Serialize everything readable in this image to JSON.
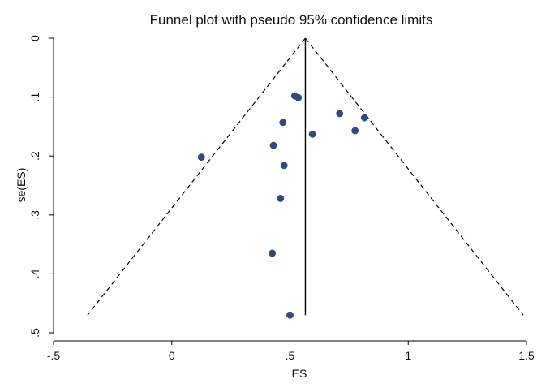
{
  "chart_data": {
    "type": "scatter",
    "title": "Funnel plot with pseudo 95% confidence limits",
    "xlabel": "ES",
    "ylabel": "se(ES)",
    "xlim": [
      -0.5,
      1.5
    ],
    "ylim": [
      0,
      0.5
    ],
    "y_reversed": true,
    "x_ticks": [
      -0.5,
      0,
      0.5,
      1,
      1.5
    ],
    "x_tick_labels": [
      "-.5",
      "0",
      ".5",
      "1",
      "1.5"
    ],
    "y_ticks": [
      0,
      0.1,
      0.2,
      0.3,
      0.4,
      0.5
    ],
    "y_tick_labels": [
      "0",
      ".1",
      ".2",
      ".3",
      ".4",
      ".5"
    ],
    "grid": false,
    "legend": "none",
    "points": [
      {
        "es": 0.52,
        "se": 0.098
      },
      {
        "es": 0.535,
        "se": 0.101
      },
      {
        "es": 0.47,
        "se": 0.143
      },
      {
        "es": 0.71,
        "se": 0.128
      },
      {
        "es": 0.815,
        "se": 0.135
      },
      {
        "es": 0.775,
        "se": 0.157
      },
      {
        "es": 0.595,
        "se": 0.163
      },
      {
        "es": 0.43,
        "se": 0.182
      },
      {
        "es": 0.125,
        "se": 0.202
      },
      {
        "es": 0.475,
        "se": 0.216
      },
      {
        "es": 0.46,
        "se": 0.272
      },
      {
        "es": 0.425,
        "se": 0.365
      },
      {
        "es": 0.5,
        "se": 0.47
      }
    ],
    "pooled_effect": 0.565,
    "line_se_max": 0.47,
    "confidence_limits": {
      "level": "95%",
      "z": 1.96
    },
    "colors": {
      "points": "#2f4b7c",
      "lines": "#000000",
      "axis": "#000000"
    }
  }
}
